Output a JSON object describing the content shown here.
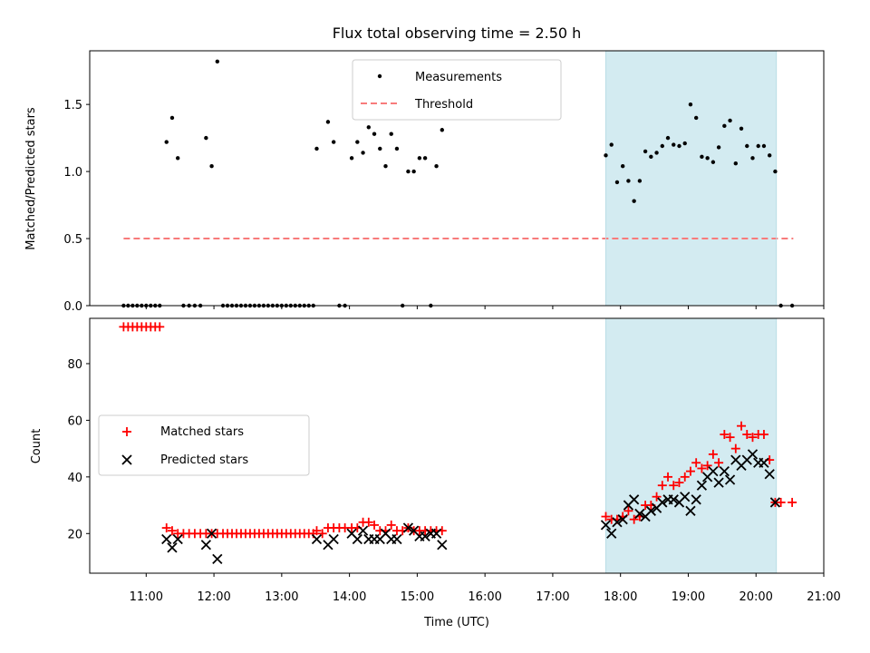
{
  "chart_data": [
    {
      "type": "scatter",
      "title": "Flux total observing time = 2.50 h",
      "ylabel": "Matched/Predicted stars",
      "xlim": [
        "10:10",
        "21:00"
      ],
      "ylim": [
        0,
        1.9
      ],
      "yticks": [
        {
          "value": 0.0,
          "label": "0.0"
        },
        {
          "value": 0.5,
          "label": "0.5"
        },
        {
          "value": 1.0,
          "label": "1.0"
        },
        {
          "value": 1.5,
          "label": "1.5"
        }
      ],
      "highlight_span": [
        "17:47",
        "20:18"
      ],
      "highlight_color": "#d3ebf1",
      "threshold": {
        "name": "Threshold",
        "value": 0.5,
        "x_range": [
          "10:40",
          "20:33"
        ],
        "color": "#f87b7b",
        "style": "dashed"
      },
      "series": [
        {
          "name": "Measurements",
          "color": "#000000",
          "marker": "dot",
          "points": [
            [
              "10:40",
              0
            ],
            [
              "10:44",
              0
            ],
            [
              "10:48",
              0
            ],
            [
              "10:52",
              0
            ],
            [
              "10:56",
              0
            ],
            [
              "11:00",
              0
            ],
            [
              "11:04",
              0
            ],
            [
              "11:08",
              0
            ],
            [
              "11:12",
              0
            ],
            [
              "11:18",
              1.22
            ],
            [
              "11:23",
              1.4
            ],
            [
              "11:28",
              1.1
            ],
            [
              "11:33",
              0
            ],
            [
              "11:38",
              0
            ],
            [
              "11:43",
              0
            ],
            [
              "11:48",
              0
            ],
            [
              "11:53",
              1.25
            ],
            [
              "11:58",
              1.04
            ],
            [
              "12:03",
              1.82
            ],
            [
              "12:08",
              0
            ],
            [
              "12:12",
              0
            ],
            [
              "12:16",
              0
            ],
            [
              "12:20",
              0
            ],
            [
              "12:24",
              0
            ],
            [
              "12:28",
              0
            ],
            [
              "12:32",
              0
            ],
            [
              "12:36",
              0
            ],
            [
              "12:40",
              0
            ],
            [
              "12:44",
              0
            ],
            [
              "12:48",
              0
            ],
            [
              "12:52",
              0
            ],
            [
              "12:56",
              0
            ],
            [
              "13:00",
              0
            ],
            [
              "13:04",
              0
            ],
            [
              "13:08",
              0
            ],
            [
              "13:12",
              0
            ],
            [
              "13:16",
              0
            ],
            [
              "13:20",
              0
            ],
            [
              "13:24",
              0
            ],
            [
              "13:28",
              0
            ],
            [
              "13:31",
              1.17
            ],
            [
              "13:41",
              1.37
            ],
            [
              "13:46",
              1.22
            ],
            [
              "13:51",
              0
            ],
            [
              "13:56",
              0
            ],
            [
              "14:02",
              1.1
            ],
            [
              "14:07",
              1.22
            ],
            [
              "14:12",
              1.14
            ],
            [
              "14:17",
              1.33
            ],
            [
              "14:22",
              1.28
            ],
            [
              "14:27",
              1.17
            ],
            [
              "14:32",
              1.04
            ],
            [
              "14:37",
              1.28
            ],
            [
              "14:42",
              1.17
            ],
            [
              "14:47",
              0
            ],
            [
              "14:52",
              1.0
            ],
            [
              "14:57",
              1.0
            ],
            [
              "15:02",
              1.1
            ],
            [
              "15:07",
              1.1
            ],
            [
              "15:12",
              0
            ],
            [
              "15:17",
              1.04
            ],
            [
              "15:22",
              1.31
            ],
            [
              "17:47",
              1.12
            ],
            [
              "17:52",
              1.2
            ],
            [
              "17:57",
              0.92
            ],
            [
              "18:02",
              1.04
            ],
            [
              "18:07",
              0.93
            ],
            [
              "18:12",
              0.78
            ],
            [
              "18:17",
              0.93
            ],
            [
              "18:22",
              1.15
            ],
            [
              "18:27",
              1.11
            ],
            [
              "18:32",
              1.14
            ],
            [
              "18:37",
              1.19
            ],
            [
              "18:42",
              1.25
            ],
            [
              "18:47",
              1.2
            ],
            [
              "18:52",
              1.19
            ],
            [
              "18:57",
              1.21
            ],
            [
              "19:02",
              1.5
            ],
            [
              "19:07",
              1.4
            ],
            [
              "19:12",
              1.11
            ],
            [
              "19:17",
              1.1
            ],
            [
              "19:22",
              1.07
            ],
            [
              "19:27",
              1.18
            ],
            [
              "19:32",
              1.34
            ],
            [
              "19:37",
              1.38
            ],
            [
              "19:42",
              1.06
            ],
            [
              "19:47",
              1.32
            ],
            [
              "19:52",
              1.19
            ],
            [
              "19:57",
              1.1
            ],
            [
              "20:02",
              1.19
            ],
            [
              "20:07",
              1.19
            ],
            [
              "20:12",
              1.12
            ],
            [
              "20:17",
              1.0
            ],
            [
              "20:22",
              0
            ],
            [
              "20:32",
              0
            ]
          ]
        }
      ],
      "legend": {
        "position": "top-center"
      }
    },
    {
      "type": "scatter",
      "xlabel": "Time (UTC)",
      "ylabel": "Count",
      "xlim": [
        "10:10",
        "21:00"
      ],
      "ylim": [
        6,
        96
      ],
      "yticks": [
        {
          "value": 20,
          "label": "20"
        },
        {
          "value": 40,
          "label": "40"
        },
        {
          "value": 60,
          "label": "60"
        },
        {
          "value": 80,
          "label": "80"
        }
      ],
      "xticks": [
        "11:00",
        "12:00",
        "13:00",
        "14:00",
        "15:00",
        "16:00",
        "17:00",
        "18:00",
        "19:00",
        "20:00",
        "21:00"
      ],
      "highlight_span": [
        "17:47",
        "20:18"
      ],
      "highlight_color": "#d3ebf1",
      "series": [
        {
          "name": "Matched stars",
          "color": "#ff0000",
          "marker": "plus",
          "points": [
            [
              "10:40",
              93
            ],
            [
              "10:44",
              93
            ],
            [
              "10:48",
              93
            ],
            [
              "10:52",
              93
            ],
            [
              "10:56",
              93
            ],
            [
              "11:00",
              93
            ],
            [
              "11:04",
              93
            ],
            [
              "11:08",
              93
            ],
            [
              "11:12",
              93
            ],
            [
              "11:18",
              22
            ],
            [
              "11:23",
              21
            ],
            [
              "11:28",
              20
            ],
            [
              "11:33",
              20
            ],
            [
              "11:38",
              20
            ],
            [
              "11:43",
              20
            ],
            [
              "11:48",
              20
            ],
            [
              "11:53",
              20
            ],
            [
              "11:58",
              20
            ],
            [
              "12:03",
              20
            ],
            [
              "12:08",
              20
            ],
            [
              "12:12",
              20
            ],
            [
              "12:16",
              20
            ],
            [
              "12:20",
              20
            ],
            [
              "12:24",
              20
            ],
            [
              "12:28",
              20
            ],
            [
              "12:32",
              20
            ],
            [
              "12:36",
              20
            ],
            [
              "12:40",
              20
            ],
            [
              "12:44",
              20
            ],
            [
              "12:48",
              20
            ],
            [
              "12:52",
              20
            ],
            [
              "12:56",
              20
            ],
            [
              "13:00",
              20
            ],
            [
              "13:04",
              20
            ],
            [
              "13:08",
              20
            ],
            [
              "13:12",
              20
            ],
            [
              "13:16",
              20
            ],
            [
              "13:20",
              20
            ],
            [
              "13:24",
              20
            ],
            [
              "13:28",
              20
            ],
            [
              "13:31",
              21
            ],
            [
              "13:36",
              20
            ],
            [
              "13:41",
              22
            ],
            [
              "13:46",
              22
            ],
            [
              "13:51",
              22
            ],
            [
              "13:56",
              22
            ],
            [
              "14:02",
              22
            ],
            [
              "14:07",
              22
            ],
            [
              "14:12",
              24
            ],
            [
              "14:17",
              24
            ],
            [
              "14:22",
              23
            ],
            [
              "14:27",
              21
            ],
            [
              "14:32",
              21
            ],
            [
              "14:37",
              23
            ],
            [
              "14:42",
              21
            ],
            [
              "14:47",
              21
            ],
            [
              "14:52",
              22
            ],
            [
              "14:57",
              21
            ],
            [
              "15:02",
              21
            ],
            [
              "15:07",
              21
            ],
            [
              "15:12",
              21
            ],
            [
              "15:17",
              21
            ],
            [
              "15:22",
              21
            ],
            [
              "17:47",
              26
            ],
            [
              "17:52",
              25
            ],
            [
              "17:57",
              25
            ],
            [
              "18:02",
              26
            ],
            [
              "18:07",
              28
            ],
            [
              "18:12",
              25
            ],
            [
              "18:17",
              26
            ],
            [
              "18:22",
              30
            ],
            [
              "18:27",
              30
            ],
            [
              "18:32",
              33
            ],
            [
              "18:37",
              37
            ],
            [
              "18:42",
              40
            ],
            [
              "18:47",
              37
            ],
            [
              "18:52",
              38
            ],
            [
              "18:57",
              40
            ],
            [
              "19:02",
              42
            ],
            [
              "19:07",
              45
            ],
            [
              "19:12",
              43
            ],
            [
              "19:17",
              44
            ],
            [
              "19:22",
              48
            ],
            [
              "19:27",
              45
            ],
            [
              "19:32",
              55
            ],
            [
              "19:37",
              54
            ],
            [
              "19:42",
              50
            ],
            [
              "19:47",
              58
            ],
            [
              "19:52",
              55
            ],
            [
              "19:57",
              54
            ],
            [
              "20:02",
              55
            ],
            [
              "20:07",
              55
            ],
            [
              "20:12",
              46
            ],
            [
              "20:17",
              31
            ],
            [
              "20:22",
              31
            ],
            [
              "20:32",
              31
            ]
          ]
        },
        {
          "name": "Predicted stars",
          "color": "#000000",
          "marker": "x",
          "points": [
            [
              "11:18",
              18
            ],
            [
              "11:23",
              15
            ],
            [
              "11:28",
              18
            ],
            [
              "11:53",
              16
            ],
            [
              "11:58",
              20
            ],
            [
              "12:03",
              11
            ],
            [
              "13:31",
              18
            ],
            [
              "13:41",
              16
            ],
            [
              "13:46",
              18
            ],
            [
              "14:02",
              20
            ],
            [
              "14:07",
              18
            ],
            [
              "14:12",
              21
            ],
            [
              "14:17",
              18
            ],
            [
              "14:22",
              18
            ],
            [
              "14:27",
              18
            ],
            [
              "14:32",
              20
            ],
            [
              "14:37",
              18
            ],
            [
              "14:42",
              18
            ],
            [
              "14:52",
              22
            ],
            [
              "14:57",
              21
            ],
            [
              "15:02",
              19
            ],
            [
              "15:07",
              19
            ],
            [
              "15:12",
              20
            ],
            [
              "15:17",
              20
            ],
            [
              "15:22",
              16
            ],
            [
              "17:47",
              23
            ],
            [
              "17:52",
              20
            ],
            [
              "17:57",
              24
            ],
            [
              "18:02",
              25
            ],
            [
              "18:07",
              30
            ],
            [
              "18:12",
              32
            ],
            [
              "18:17",
              27
            ],
            [
              "18:22",
              26
            ],
            [
              "18:27",
              28
            ],
            [
              "18:32",
              29
            ],
            [
              "18:37",
              31
            ],
            [
              "18:42",
              32
            ],
            [
              "18:47",
              32
            ],
            [
              "18:52",
              31
            ],
            [
              "18:57",
              33
            ],
            [
              "19:02",
              28
            ],
            [
              "19:07",
              32
            ],
            [
              "19:12",
              37
            ],
            [
              "19:17",
              40
            ],
            [
              "19:22",
              42
            ],
            [
              "19:27",
              38
            ],
            [
              "19:32",
              42
            ],
            [
              "19:37",
              39
            ],
            [
              "19:42",
              46
            ],
            [
              "19:47",
              44
            ],
            [
              "19:52",
              46
            ],
            [
              "19:57",
              48
            ],
            [
              "20:02",
              45
            ],
            [
              "20:07",
              45
            ],
            [
              "20:12",
              41
            ],
            [
              "20:17",
              31
            ]
          ]
        }
      ],
      "legend": {
        "position": "center-left"
      }
    }
  ]
}
